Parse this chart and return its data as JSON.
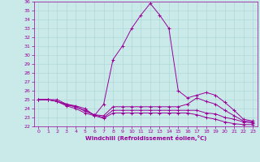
{
  "xlabel": "Windchill (Refroidissement éolien,°C)",
  "bg_color": "#caeaea",
  "grid_color": "#b0d8d8",
  "line_color": "#990099",
  "xlim": [
    -0.5,
    23.5
  ],
  "ylim": [
    22,
    36
  ],
  "yticks": [
    22,
    23,
    24,
    25,
    26,
    27,
    28,
    29,
    30,
    31,
    32,
    33,
    34,
    35,
    36
  ],
  "xticks": [
    0,
    1,
    2,
    3,
    4,
    5,
    6,
    7,
    8,
    9,
    10,
    11,
    12,
    13,
    14,
    15,
    16,
    17,
    18,
    19,
    20,
    21,
    22,
    23
  ],
  "series": [
    {
      "x": [
        0,
        1,
        2,
        3,
        4,
        5,
        6,
        7,
        8,
        9,
        10,
        11,
        12,
        13,
        14,
        15,
        16,
        17,
        18,
        19,
        20,
        21,
        22,
        23
      ],
      "y": [
        25.0,
        25.0,
        25.0,
        24.5,
        24.3,
        24.0,
        23.2,
        24.5,
        29.5,
        31.0,
        33.0,
        34.5,
        35.8,
        34.5,
        33.0,
        26.0,
        25.2,
        25.5,
        25.8,
        25.5,
        24.7,
        23.8,
        22.8,
        22.6
      ]
    },
    {
      "x": [
        0,
        1,
        2,
        3,
        4,
        5,
        6,
        7,
        8,
        9,
        10,
        11,
        12,
        13,
        14,
        15,
        16,
        17,
        18,
        19,
        20,
        21,
        22,
        23
      ],
      "y": [
        25.0,
        25.0,
        24.8,
        24.4,
        24.2,
        23.7,
        23.3,
        23.2,
        24.2,
        24.2,
        24.2,
        24.2,
        24.2,
        24.2,
        24.2,
        24.2,
        24.5,
        25.2,
        24.8,
        24.5,
        23.8,
        23.2,
        22.6,
        22.5
      ]
    },
    {
      "x": [
        0,
        1,
        2,
        3,
        4,
        5,
        6,
        7,
        8,
        9,
        10,
        11,
        12,
        13,
        14,
        15,
        16,
        17,
        18,
        19,
        20,
        21,
        22,
        23
      ],
      "y": [
        25.0,
        25.0,
        24.8,
        24.5,
        24.2,
        23.8,
        23.3,
        23.0,
        23.8,
        23.8,
        23.8,
        23.8,
        23.8,
        23.8,
        23.8,
        23.8,
        23.8,
        23.8,
        23.5,
        23.4,
        23.0,
        22.8,
        22.5,
        22.4
      ]
    },
    {
      "x": [
        0,
        1,
        2,
        3,
        4,
        5,
        6,
        7,
        8,
        9,
        10,
        11,
        12,
        13,
        14,
        15,
        16,
        17,
        18,
        19,
        20,
        21,
        22,
        23
      ],
      "y": [
        25.0,
        25.0,
        24.8,
        24.3,
        24.0,
        23.5,
        23.2,
        22.9,
        23.5,
        23.5,
        23.5,
        23.5,
        23.5,
        23.5,
        23.5,
        23.5,
        23.5,
        23.3,
        23.0,
        22.8,
        22.5,
        22.3,
        22.2,
        22.2
      ]
    }
  ]
}
